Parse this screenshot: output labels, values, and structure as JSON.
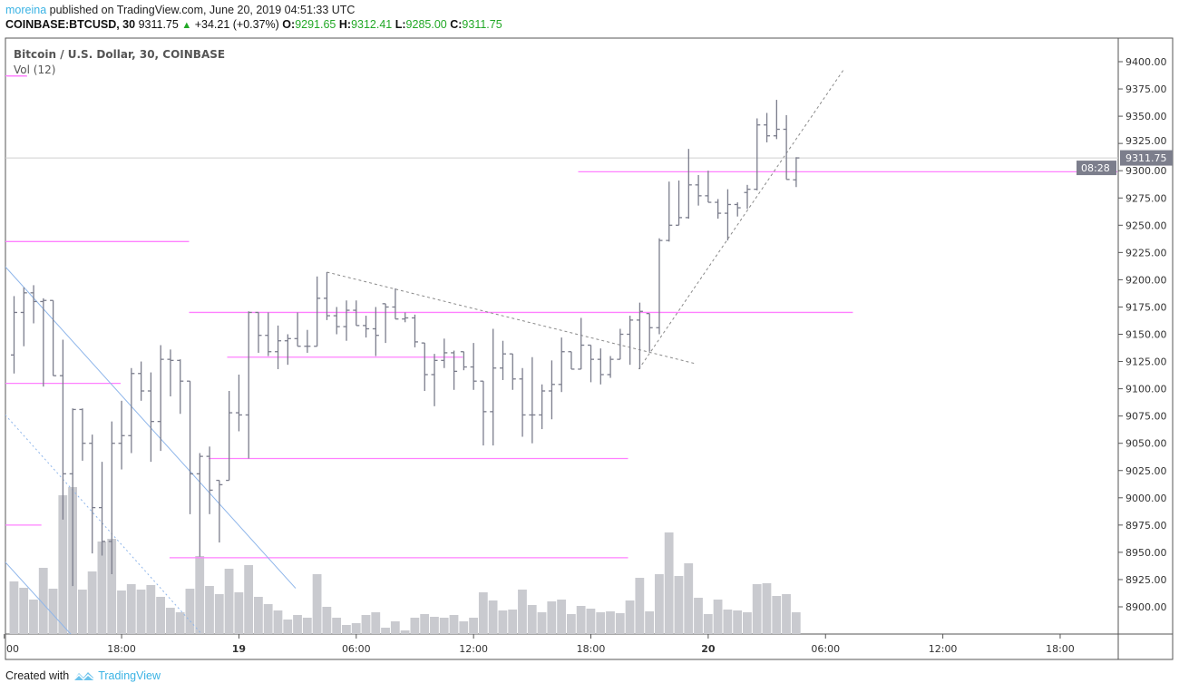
{
  "header": {
    "author": "moreina",
    "published": "published on TradingView.com, June 20, 2019 04:51:33 UTC",
    "symbol": "COINBASE:BTCUSD, 30",
    "last": "9311.75",
    "change": "+34.21 (+0.37%)",
    "o_label": "O:",
    "o_value": "9291.65",
    "h_label": "H:",
    "h_value": "9312.41",
    "l_label": "L:",
    "l_value": "9285.00",
    "c_label": "C:",
    "c_value": "9311.75"
  },
  "legend": {
    "series": "Bitcoin / U.S. Dollar, 30, COINBASE",
    "volume": "Vol (12)"
  },
  "price_box": {
    "value": "9311.75",
    "countdown": "08:28"
  },
  "footer": {
    "created_with": "Created with",
    "brand": "TradingView"
  },
  "colors": {
    "bar": "#7b7d8c",
    "volume": "#c9cacf",
    "hline": "#ff80ff",
    "trend_blue": "#8fb6ea",
    "trend_gray": "#8a8a8a",
    "last_price_line": "#cfcfcf",
    "author": "#3bb3e4",
    "up": "#22a826"
  },
  "chart_data": {
    "type": "ohlc",
    "interval_minutes": 30,
    "ylim": [
      8876,
      9420
    ],
    "y_ticks": [
      "9400.00",
      "9375.00",
      "9350.00",
      "9325.00",
      "9300.00",
      "9275.00",
      "9250.00",
      "9225.00",
      "9200.00",
      "9175.00",
      "9150.00",
      "9125.00",
      "9100.00",
      "9075.00",
      "9050.00",
      "9025.00",
      "9000.00",
      "8975.00",
      "8950.00",
      "8925.00",
      "8900.00"
    ],
    "x_ticks": [
      "00",
      "18:00",
      "19",
      "06:00",
      "12:00",
      "18:00",
      "20",
      "06:00",
      "12:00",
      "18:00"
    ],
    "x_ticks_bold": [
      "19",
      "20"
    ],
    "last_price": 9311.75,
    "columns": [
      "time",
      "open",
      "high",
      "low",
      "close",
      "volume_relative"
    ],
    "bars": [
      [
        "06-18 12:30",
        9131,
        9185,
        9114,
        9170,
        58
      ],
      [
        "06-18 13:00",
        9170,
        9193,
        9139,
        9188,
        51
      ],
      [
        "06-18 13:30",
        9188,
        9195,
        9160,
        9180,
        38
      ],
      [
        "06-18 14:00",
        9180,
        9183,
        9102,
        9181,
        73
      ],
      [
        "06-18 14:30",
        9181,
        9181,
        9112,
        9112,
        50
      ],
      [
        "06-18 15:00",
        9112,
        9145,
        8980,
        9022,
        153
      ],
      [
        "06-18 15:30",
        9022,
        9082,
        8919,
        9081,
        162
      ],
      [
        "06-18 16:00",
        9081,
        9082,
        9034,
        9050,
        49
      ],
      [
        "06-18 16:30",
        9050,
        9058,
        8949,
        8991,
        69
      ],
      [
        "06-18 17:00",
        8991,
        9033,
        8947,
        8960,
        102
      ],
      [
        "06-18 17:30",
        8960,
        9070,
        8930,
        9050,
        105
      ],
      [
        "06-18 18:00",
        9050,
        9089,
        9026,
        9057,
        48
      ],
      [
        "06-18 18:30",
        9057,
        9119,
        9041,
        9114,
        55
      ],
      [
        "06-18 19:00",
        9114,
        9125,
        9089,
        9098,
        49
      ],
      [
        "06-18 19:30",
        9098,
        9115,
        9033,
        9070,
        54
      ],
      [
        "06-18 20:00",
        9070,
        9140,
        9043,
        9127,
        41
      ],
      [
        "06-18 20:30",
        9127,
        9136,
        9093,
        9126,
        29
      ],
      [
        "06-18 21:00",
        9126,
        9127,
        9077,
        9107,
        24
      ],
      [
        "06-18 21:30",
        9107,
        9107,
        8985,
        9022,
        50
      ],
      [
        "06-18 22:00",
        9022,
        9041,
        8946,
        9038,
        86
      ],
      [
        "06-18 22:30",
        9038,
        9047,
        8985,
        9007,
        53
      ],
      [
        "06-18 23:00",
        9016,
        9016,
        8959,
        9012,
        44
      ],
      [
        "06-18 23:30",
        9016,
        9098,
        9016,
        9078,
        72
      ],
      [
        "06-19 00:00",
        9078,
        9113,
        9061,
        9076,
        46
      ],
      [
        "06-19 00:30",
        9076,
        9171,
        9036,
        9170,
        76
      ],
      [
        "06-19 01:00",
        9170,
        9170,
        9133,
        9149,
        41
      ],
      [
        "06-19 01:30",
        9149,
        9170,
        9130,
        9134,
        33
      ],
      [
        "06-19 02:00",
        9134,
        9158,
        9118,
        9144,
        26
      ],
      [
        "06-19 02:30",
        9144,
        9150,
        9122,
        9146,
        16
      ],
      [
        "06-19 03:00",
        9146,
        9170,
        9139,
        9139,
        21
      ],
      [
        "06-19 03:30",
        9139,
        9154,
        9133,
        9139,
        18
      ],
      [
        "06-19 04:00",
        9139,
        9203,
        9139,
        9183,
        66
      ],
      [
        "06-19 04:30",
        9183,
        9207,
        9163,
        9167,
        30
      ],
      [
        "06-19 05:00",
        9167,
        9175,
        9150,
        9157,
        18
      ],
      [
        "06-19 05:30",
        9157,
        9181,
        9144,
        9172,
        10
      ],
      [
        "06-19 06:00",
        9172,
        9181,
        9158,
        9158,
        12
      ],
      [
        "06-19 06:30",
        9158,
        9167,
        9147,
        9155,
        21
      ],
      [
        "06-19 07:00",
        9155,
        9175,
        9130,
        9149,
        24
      ],
      [
        "06-19 07:30",
        9178,
        9178,
        9142,
        9175,
        7
      ],
      [
        "06-19 08:00",
        9175,
        9192,
        9164,
        9164,
        14
      ],
      [
        "06-19 08:30",
        9164,
        9170,
        9161,
        9165,
        4
      ],
      [
        "06-19 09:00",
        9165,
        9168,
        9138,
        9143,
        18
      ],
      [
        "06-19 09:30",
        9142,
        9142,
        9098,
        9113,
        22
      ],
      [
        "06-19 10:00",
        9113,
        9132,
        9084,
        9126,
        19
      ],
      [
        "06-19 10:30",
        9126,
        9146,
        9119,
        9133,
        18
      ],
      [
        "06-19 11:00",
        9133,
        9135,
        9099,
        9116,
        21
      ],
      [
        "06-19 11:30",
        9134,
        9134,
        9117,
        9120,
        14
      ],
      [
        "06-19 12:00",
        9120,
        9142,
        9099,
        9107,
        18
      ],
      [
        "06-19 12:30",
        9107,
        9107,
        9048,
        9079,
        46
      ],
      [
        "06-19 13:00",
        9079,
        9155,
        9048,
        9119,
        37
      ],
      [
        "06-19 13:30",
        9119,
        9144,
        9108,
        9132,
        26
      ],
      [
        "06-19 14:00",
        9132,
        9132,
        9099,
        9109,
        27
      ],
      [
        "06-19 14:30",
        9109,
        9119,
        9056,
        9076,
        49
      ],
      [
        "06-19 15:00",
        9076,
        9129,
        9050,
        9076,
        32
      ],
      [
        "06-19 15:30",
        9076,
        9104,
        9063,
        9098,
        24
      ],
      [
        "06-19 16:00",
        9098,
        9126,
        9072,
        9104,
        36
      ],
      [
        "06-19 16:30",
        9104,
        9147,
        9097,
        9134,
        38
      ],
      [
        "06-19 17:00",
        9134,
        9134,
        9118,
        9118,
        22
      ],
      [
        "06-19 17:30",
        9118,
        9165,
        9118,
        9140,
        31
      ],
      [
        "06-19 18:00",
        9140,
        9140,
        9106,
        9127,
        28
      ],
      [
        "06-19 18:30",
        9127,
        9137,
        9104,
        9113,
        24
      ],
      [
        "06-19 19:00",
        9113,
        9130,
        9110,
        9127,
        25
      ],
      [
        "06-19 19:30",
        9127,
        9155,
        9127,
        9150,
        23
      ],
      [
        "06-19 20:00",
        9150,
        9167,
        9122,
        9163,
        37
      ],
      [
        "06-19 20:30",
        9163,
        9179,
        9118,
        9171,
        62
      ],
      [
        "06-19 21:00",
        9169,
        9169,
        9134,
        9156,
        25
      ],
      [
        "06-19 21:30",
        9156,
        9238,
        9150,
        9236,
        66
      ],
      [
        "06-19 22:00",
        9236,
        9290,
        9235,
        9250,
        112
      ],
      [
        "06-19 22:30",
        9250,
        9291,
        9250,
        9257,
        64
      ],
      [
        "06-19 23:00",
        9257,
        9320,
        9256,
        9287,
        78
      ],
      [
        "06-19 23:30",
        9287,
        9296,
        9268,
        9277,
        40
      ],
      [
        "06-20 00:00",
        9277,
        9300,
        9271,
        9271,
        22
      ],
      [
        "06-20 00:30",
        9271,
        9274,
        9256,
        9261,
        38
      ],
      [
        "06-20 01:00",
        9261,
        9283,
        9236,
        9269,
        27
      ],
      [
        "06-20 01:30",
        9269,
        9271,
        9258,
        9266,
        26
      ],
      [
        "06-20 02:00",
        9280,
        9287,
        9265,
        9283,
        24
      ],
      [
        "06-20 02:30",
        9283,
        9348,
        9282,
        9342,
        55
      ],
      [
        "06-20 03:00",
        9342,
        9353,
        9326,
        9332,
        56
      ],
      [
        "06-20 03:30",
        9332,
        9365,
        9329,
        9338,
        42
      ],
      [
        "06-20 04:00",
        9338,
        9351,
        9292,
        9292,
        44
      ],
      [
        "06-20 04:30",
        9291.65,
        9312.41,
        9285,
        9311.75,
        24
      ]
    ],
    "drawings": {
      "horizontal_levels": [
        {
          "price": 9387,
          "from_bar": 0.1,
          "to_bar": 2.3
        },
        {
          "price": 9235,
          "from_bar": 0.1,
          "to_bar": 18.9
        },
        {
          "price": 9105,
          "from_bar": 0.1,
          "to_bar": 11.9
        },
        {
          "price": 8975,
          "from_bar": 0.1,
          "to_bar": 3.8
        },
        {
          "price": 8945,
          "from_bar": 16.9,
          "to_bar": 63.8
        },
        {
          "price": 9170,
          "from_bar": 18.9,
          "to_bar": 86.8
        },
        {
          "price": 9129,
          "from_bar": 22.8,
          "to_bar": 46.9
        },
        {
          "price": 9036,
          "from_bar": 20.9,
          "to_bar": 63.8
        },
        {
          "price": 9299,
          "from_bar": 58.7,
          "to_bar": 113.9
        }
      ],
      "trend_lines": [
        {
          "style": "dashed-gray",
          "from": [
            33,
            9207
          ],
          "to": [
            70.7,
            9123
          ]
        },
        {
          "style": "dashed-gray",
          "from": [
            64.9,
            9118
          ],
          "to": [
            85.8,
            9392
          ]
        },
        {
          "style": "solid-blue",
          "from": [
            0.1,
            9212
          ],
          "to": [
            29.8,
            8917
          ]
        },
        {
          "style": "solid-blue",
          "from": [
            0.1,
            8941
          ],
          "to": [
            6.9,
            8874
          ]
        },
        {
          "style": "dotted-blue",
          "from": [
            0.1,
            9076
          ],
          "to": [
            20.1,
            8876
          ]
        }
      ]
    }
  }
}
